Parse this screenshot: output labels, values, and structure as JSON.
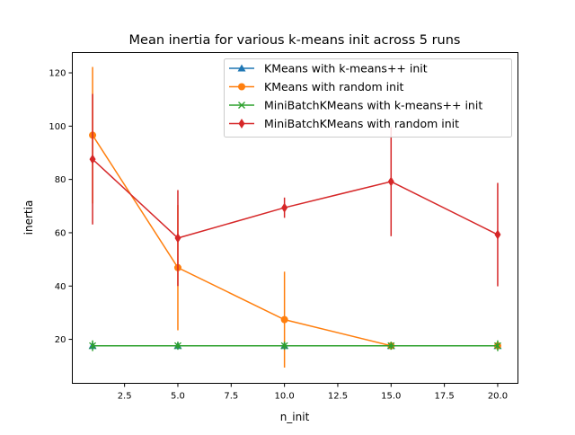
{
  "chart_data": {
    "type": "line",
    "title": "Mean inertia for various k-means init across 5 runs",
    "xlabel": "n_init",
    "ylabel": "inertia",
    "xlim": [
      0.05,
      20.95
    ],
    "ylim": [
      3.5,
      127.6
    ],
    "xticks": [
      2.5,
      5.0,
      7.5,
      10.0,
      12.5,
      15.0,
      17.5,
      20.0
    ],
    "xtick_labels": [
      "2.5",
      "5.0",
      "7.5",
      "10.0",
      "12.5",
      "15.0",
      "17.5",
      "20.0"
    ],
    "yticks": [
      20,
      40,
      60,
      80,
      100,
      120
    ],
    "ytick_labels": [
      "20",
      "40",
      "60",
      "80",
      "100",
      "120"
    ],
    "grid": false,
    "legend_position": "top-right",
    "x": [
      1,
      5,
      10,
      15,
      20
    ],
    "series": [
      {
        "name": "KMeans with k-means++ init",
        "marker": "triangle",
        "color": "#1f77b4",
        "values": [
          17.6,
          17.6,
          17.6,
          17.6,
          17.6
        ],
        "errors": [
          0.5,
          0.5,
          0.5,
          0.5,
          0.5
        ]
      },
      {
        "name": "KMeans with random init",
        "marker": "circle",
        "color": "#ff7f0e",
        "values": [
          96.6,
          46.9,
          27.4,
          17.6,
          17.6
        ],
        "errors": [
          25.6,
          23.5,
          18.0,
          0.5,
          0.5
        ]
      },
      {
        "name": "MiniBatchKMeans with k-means++ init",
        "marker": "x",
        "color": "#2ca02c",
        "values": [
          17.6,
          17.6,
          17.6,
          17.6,
          17.6
        ],
        "errors": [
          2.0,
          1.5,
          1.5,
          1.5,
          2.0
        ]
      },
      {
        "name": "MiniBatchKMeans with random init",
        "marker": "diamond",
        "color": "#d62728",
        "values": [
          87.6,
          58.0,
          69.4,
          79.2,
          59.3
        ],
        "errors": [
          24.5,
          18.0,
          3.8,
          20.5,
          19.4
        ]
      }
    ]
  }
}
